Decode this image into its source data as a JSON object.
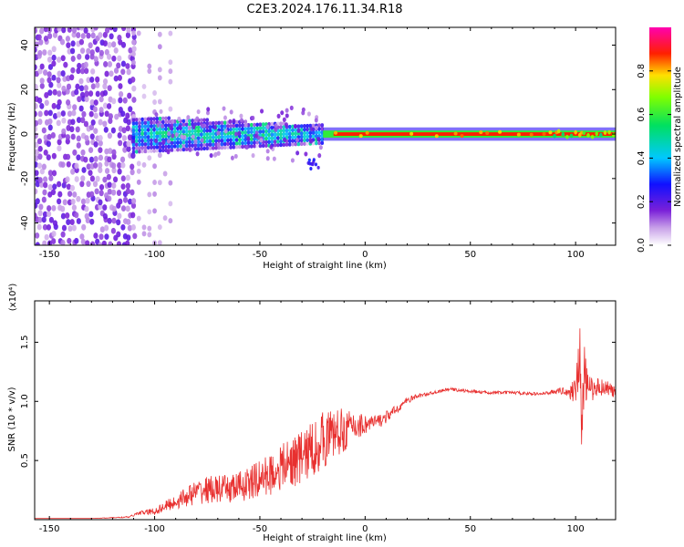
{
  "title": "C2E3.2024.176.11.34.R18",
  "chart_data": [
    {
      "type": "heatmap",
      "xlabel": "Height of straight line (km)",
      "ylabel": "Frequency (Hz)",
      "xlim": [
        -157,
        119
      ],
      "ylim": [
        -50,
        48
      ],
      "x_ticks": [
        -150,
        -100,
        -50,
        0,
        50,
        100
      ],
      "y_ticks": [
        -40,
        -20,
        0,
        20,
        40
      ],
      "colorbar": {
        "label": "Normalized spectral amplitude",
        "range": [
          0,
          1
        ],
        "ticks": [
          0.0,
          0.2,
          0.4,
          0.6,
          0.8
        ],
        "colormap": "rainbow (white-violet-blue-cyan-green-yellow-red-magenta)"
      },
      "features": [
        {
          "x_range": [
            -157,
            -110
          ],
          "y_range": [
            -50,
            48
          ],
          "amplitude": 0.1
        },
        {
          "x_range": [
            -110,
            -20
          ],
          "y_center": 0,
          "half_width_hz": 7,
          "amplitude": 0.35
        },
        {
          "x_range": [
            -20,
            119
          ],
          "y_center": 0,
          "half_width_hz": 2,
          "amplitude": 0.9
        },
        {
          "x": -25,
          "y": -14,
          "amplitude": 0.15
        }
      ]
    },
    {
      "type": "line",
      "xlabel": "Height of straight line (km)",
      "ylabel": "SNR (10 * v/v)",
      "y_multiplier": "(x10⁴)",
      "xlim": [
        -157,
        119
      ],
      "ylim": [
        0,
        1.85
      ],
      "x_ticks": [
        -150,
        -100,
        -50,
        0,
        50,
        100
      ],
      "y_ticks": [
        0.5,
        1.0,
        1.5
      ],
      "color": "#e8302f",
      "series": [
        {
          "x": [
            -157,
            -130,
            -112,
            -108,
            -100,
            -95,
            -90,
            -85,
            -80,
            -75,
            -70,
            -65,
            -60,
            -55,
            -50,
            -45,
            -40,
            -35,
            -30,
            -25,
            -20,
            -15,
            -10,
            -5,
            0,
            5,
            10,
            15,
            20,
            25,
            30,
            40,
            50,
            60,
            70,
            80,
            85,
            90,
            95,
            98,
            100,
            102,
            103,
            104,
            106,
            110,
            115,
            119
          ],
          "values": [
            0.01,
            0.01,
            0.02,
            0.05,
            0.06,
            0.1,
            0.13,
            0.17,
            0.2,
            0.22,
            0.22,
            0.22,
            0.24,
            0.26,
            0.3,
            0.33,
            0.38,
            0.42,
            0.46,
            0.52,
            0.6,
            0.66,
            0.7,
            0.75,
            0.78,
            0.8,
            0.85,
            0.92,
            1.0,
            1.04,
            1.06,
            1.1,
            1.08,
            1.07,
            1.07,
            1.06,
            1.06,
            1.08,
            1.08,
            1.05,
            1.1,
            1.3,
            0.55,
            1.2,
            1.05,
            1.1,
            1.1,
            1.05
          ],
          "noise": [
            0,
            0,
            0.01,
            0.02,
            0.05,
            0.07,
            0.1,
            0.13,
            0.16,
            0.18,
            0.18,
            0.19,
            0.2,
            0.22,
            0.25,
            0.27,
            0.3,
            0.33,
            0.36,
            0.38,
            0.38,
            0.34,
            0.28,
            0.2,
            0.14,
            0.1,
            0.08,
            0.06,
            0.04,
            0.03,
            0.02,
            0.02,
            0.02,
            0.02,
            0.02,
            0.02,
            0.02,
            0.03,
            0.05,
            0.1,
            0.25,
            0.45,
            0.5,
            0.35,
            0.2,
            0.12,
            0.1,
            0.08
          ]
        }
      ]
    }
  ]
}
